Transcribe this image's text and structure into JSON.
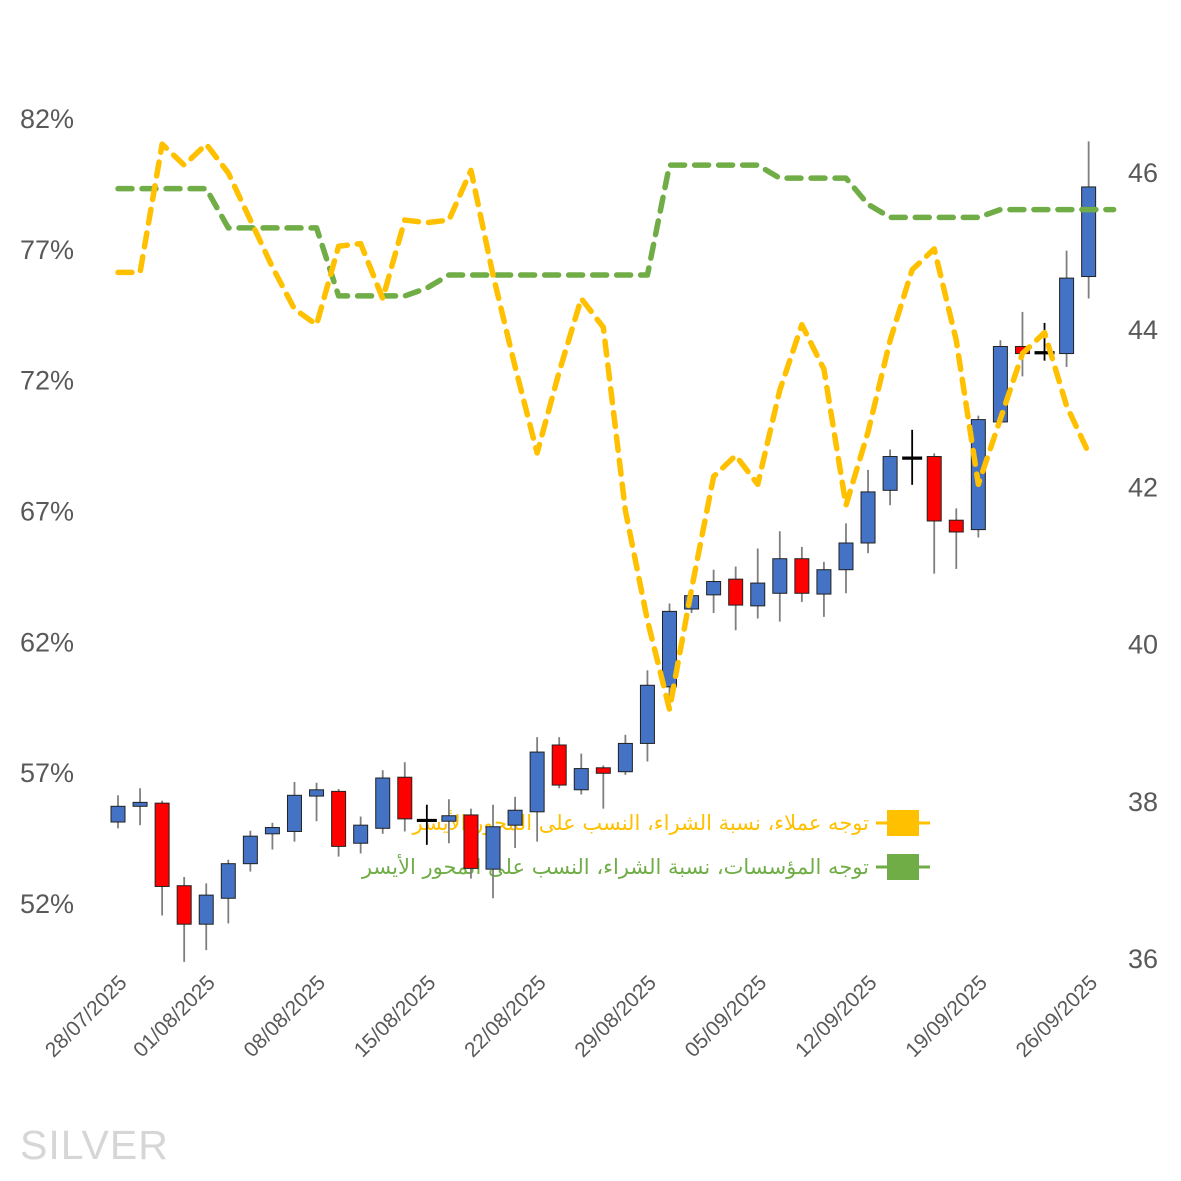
{
  "chart_data": {
    "type": "candlestick",
    "title": "SILVER",
    "grid": false,
    "legend_position": "middle-right",
    "left_axis": {
      "unit": "%",
      "range": [
        52,
        82
      ],
      "labels": [
        "82%",
        "77%",
        "72%",
        "67%",
        "62%",
        "57%",
        "52%"
      ],
      "values": [
        82,
        77,
        72,
        67,
        62,
        57,
        52
      ]
    },
    "right_axis": {
      "unit": "USD",
      "range": [
        36,
        46
      ],
      "labels": [
        "46",
        "44",
        "42",
        "40",
        "38",
        "36"
      ],
      "values": [
        46,
        44,
        42,
        40,
        38,
        36
      ]
    },
    "x_axis": {
      "tick_indices": [
        0,
        4,
        9,
        14,
        19,
        24,
        29,
        34,
        39,
        44
      ],
      "tick_labels": [
        "28/07/2025",
        "01/08/2025",
        "08/08/2025",
        "15/08/2025",
        "22/08/2025",
        "29/08/2025",
        "05/09/2025",
        "12/09/2025",
        "19/09/2025",
        "26/09/2025"
      ]
    },
    "dates": [
      "28/07/2025",
      "29/07/2025",
      "30/07/2025",
      "31/07/2025",
      "01/08/2025",
      "04/08/2025",
      "05/08/2025",
      "06/08/2025",
      "07/08/2025",
      "08/08/2025",
      "11/08/2025",
      "12/08/2025",
      "13/08/2025",
      "14/08/2025",
      "15/08/2025",
      "18/08/2025",
      "19/08/2025",
      "20/08/2025",
      "21/08/2025",
      "22/08/2025",
      "25/08/2025",
      "26/08/2025",
      "27/08/2025",
      "28/08/2025",
      "29/08/2025",
      "01/09/2025",
      "02/09/2025",
      "03/09/2025",
      "04/09/2025",
      "05/09/2025",
      "08/09/2025",
      "09/09/2025",
      "10/09/2025",
      "11/09/2025",
      "12/09/2025",
      "15/09/2025",
      "16/09/2025",
      "17/09/2025",
      "18/09/2025",
      "19/09/2025",
      "22/09/2025",
      "23/09/2025",
      "24/09/2025",
      "25/09/2025",
      "26/09/2025"
    ],
    "series": [
      {
        "name": "توجه عملاء، نسبة الشراء، النسب على المحور الأيسر",
        "type": "line",
        "style": "dashed",
        "axis": "left",
        "color": "#FFC000",
        "values": [
          76.1,
          76.1,
          81.0,
          80.2,
          81.0,
          79.9,
          78.1,
          76.3,
          74.7,
          74.1,
          77.1,
          77.2,
          75.1,
          78.1,
          78.0,
          78.1,
          80.0,
          76.0,
          72.5,
          69.2,
          72.3,
          75.1,
          74.0,
          67.0,
          62.8,
          59.4,
          64.0,
          68.3,
          69.1,
          68.0,
          71.6,
          74.1,
          72.4,
          67.2,
          70.0,
          73.5,
          76.2,
          77.0,
          73.5,
          68.0,
          70.5,
          73.0,
          73.8,
          71.0,
          69.2
        ]
      },
      {
        "name": "توجه المؤسسات، نسبة الشراء، النسب على المحور الأيسر",
        "type": "line",
        "style": "dashed",
        "axis": "left",
        "color": "#70AD47",
        "values": [
          79.3,
          79.3,
          79.3,
          79.3,
          79.3,
          77.8,
          77.8,
          77.8,
          77.8,
          77.8,
          75.2,
          75.2,
          75.2,
          75.2,
          75.5,
          76.0,
          76.0,
          76.0,
          76.0,
          76.0,
          76.0,
          76.0,
          76.0,
          76.0,
          76.0,
          80.2,
          80.2,
          80.2,
          80.2,
          80.2,
          79.7,
          79.7,
          79.7,
          79.7,
          78.7,
          78.2,
          78.2,
          78.2,
          78.2,
          78.2,
          78.5,
          78.5,
          78.5,
          78.5,
          78.5
        ]
      },
      {
        "name": "SILVER",
        "type": "candlestick",
        "axis": "right",
        "up_color": "#4472C4",
        "down_color": "#FF0000",
        "doji_color": "#000000",
        "ohlc": [
          [
            37.73,
            38.07,
            37.65,
            37.93
          ],
          [
            37.93,
            38.16,
            37.69,
            37.98
          ],
          [
            37.97,
            38.0,
            36.54,
            36.91
          ],
          [
            36.92,
            37.03,
            35.95,
            36.43
          ],
          [
            36.43,
            36.95,
            36.1,
            36.8
          ],
          [
            36.76,
            37.25,
            36.44,
            37.2
          ],
          [
            37.2,
            37.62,
            37.1,
            37.55
          ],
          [
            37.58,
            37.72,
            37.38,
            37.66
          ],
          [
            37.61,
            38.24,
            37.48,
            38.07
          ],
          [
            38.06,
            38.23,
            37.74,
            38.14
          ],
          [
            38.12,
            38.15,
            37.29,
            37.42
          ],
          [
            37.46,
            37.8,
            37.33,
            37.69
          ],
          [
            37.65,
            38.39,
            37.58,
            38.29
          ],
          [
            38.3,
            38.49,
            37.61,
            37.77
          ],
          [
            37.75,
            37.95,
            37.44,
            37.75
          ],
          [
            37.74,
            38.02,
            37.46,
            37.81
          ],
          [
            37.82,
            37.9,
            37.01,
            37.14
          ],
          [
            37.13,
            37.95,
            36.76,
            37.67
          ],
          [
            37.69,
            38.05,
            37.4,
            37.88
          ],
          [
            37.86,
            38.81,
            37.48,
            38.62
          ],
          [
            38.71,
            38.81,
            38.16,
            38.2
          ],
          [
            38.14,
            38.6,
            38.08,
            38.41
          ],
          [
            38.42,
            38.45,
            37.9,
            38.35
          ],
          [
            38.37,
            38.84,
            38.33,
            38.73
          ],
          [
            38.73,
            39.66,
            38.5,
            39.47
          ],
          [
            39.45,
            40.51,
            39.26,
            40.41
          ],
          [
            40.44,
            40.68,
            40.39,
            40.61
          ],
          [
            40.62,
            40.94,
            40.39,
            40.79
          ],
          [
            40.82,
            40.98,
            40.17,
            40.49
          ],
          [
            40.48,
            41.21,
            40.32,
            40.77
          ],
          [
            40.64,
            41.43,
            40.28,
            41.08
          ],
          [
            41.08,
            41.23,
            40.53,
            40.64
          ],
          [
            40.63,
            41.04,
            40.34,
            40.94
          ],
          [
            40.94,
            41.53,
            40.64,
            41.28
          ],
          [
            41.28,
            42.21,
            41.15,
            41.93
          ],
          [
            41.95,
            42.47,
            41.76,
            42.38
          ],
          [
            42.36,
            42.72,
            42.02,
            42.36
          ],
          [
            42.38,
            42.42,
            40.89,
            41.56
          ],
          [
            41.57,
            41.72,
            40.95,
            41.42
          ],
          [
            41.45,
            42.9,
            41.35,
            42.85
          ],
          [
            42.82,
            43.86,
            42.8,
            43.78
          ],
          [
            43.78,
            44.22,
            43.4,
            43.69
          ],
          [
            43.7,
            44.08,
            43.6,
            43.7
          ],
          [
            43.69,
            45.0,
            43.52,
            44.65
          ],
          [
            44.67,
            46.39,
            44.39,
            45.81
          ]
        ]
      }
    ],
    "colors": {
      "candle_up": "#4472C4",
      "candle_down": "#FF0000",
      "doji": "#000000",
      "client_line": "#FFC000",
      "institution_line": "#70AD47",
      "axis_text": "#595959",
      "title_text": "#D6D6D6"
    }
  }
}
